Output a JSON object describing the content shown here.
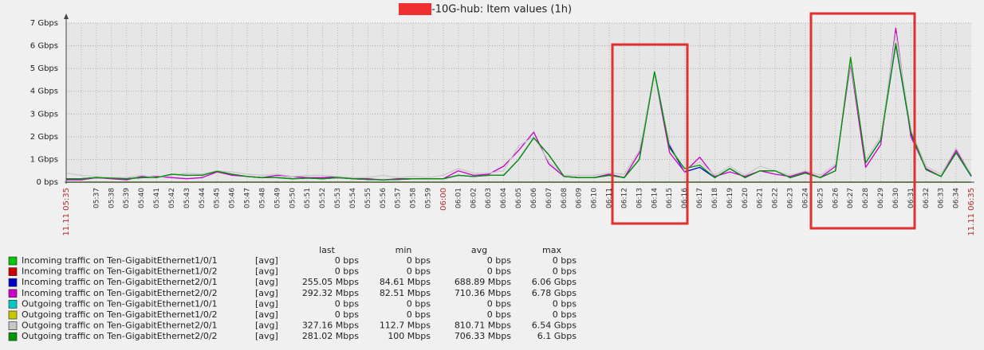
{
  "chart_data": {
    "type": "line",
    "title": "-10G-hub: Item values (1h)",
    "categories": [
      "11.11 05:35",
      null,
      "05:37",
      "05:38",
      "05:39",
      "05:40",
      "05:41",
      "05:42",
      "05:43",
      "05:44",
      "05:45",
      "05:46",
      "05:47",
      "05:48",
      "05:49",
      "05:50",
      "05:51",
      "05:52",
      "05:53",
      "05:54",
      "05:55",
      "05:56",
      "05:57",
      "05:58",
      "05:59",
      "06:00",
      "06:01",
      "06:02",
      "06:03",
      "06:04",
      "06:05",
      "06:06",
      "06:07",
      "06:08",
      "06:09",
      "06:10",
      "06:11",
      "06:12",
      "06:13",
      "06:14",
      "06:15",
      "06:16",
      "06:17",
      "06:18",
      "06:19",
      "06:20",
      "06:21",
      "06:22",
      "06:23",
      "06:24",
      "06:25",
      "06:26",
      "06:27",
      "06:28",
      "06:29",
      "06:30",
      "06:31",
      "06:32",
      "06:33",
      "06:34",
      "11.11 06:35"
    ],
    "x_highlight": [
      0,
      25,
      60
    ],
    "x_highlight_color": "#b03030",
    "ylim": [
      0,
      7
    ],
    "yticks": [
      {
        "value": 0,
        "label": "0 bps"
      },
      {
        "value": 1,
        "label": "1 Gbps"
      },
      {
        "value": 2,
        "label": "2 Gbps"
      },
      {
        "value": 3,
        "label": "3 Gbps"
      },
      {
        "value": 4,
        "label": "4 Gbps"
      },
      {
        "value": 5,
        "label": "5 Gbps"
      },
      {
        "value": 6,
        "label": "6 Gbps"
      },
      {
        "value": 7,
        "label": "7 Gbps"
      }
    ],
    "grid": true,
    "stat_headers": [
      "last",
      "min",
      "avg",
      "max"
    ],
    "series": [
      {
        "name": "Incoming traffic on Ten-GigabitEthernet1/0/1",
        "func": "[avg]",
        "color": "#00c800",
        "stats": [
          "0 bps",
          "0 bps",
          "0 bps",
          "0 bps"
        ],
        "values": [
          0,
          0,
          0,
          0,
          0,
          0,
          0,
          0,
          0,
          0,
          0,
          0,
          0,
          0,
          0,
          0,
          0,
          0,
          0,
          0,
          0,
          0,
          0,
          0,
          0,
          0,
          0,
          0,
          0,
          0,
          0,
          0,
          0,
          0,
          0,
          0,
          0,
          0,
          0,
          0,
          0,
          0,
          0,
          0,
          0,
          0,
          0,
          0,
          0,
          0,
          0,
          0,
          0,
          0,
          0,
          0,
          0,
          0,
          0,
          0,
          0
        ]
      },
      {
        "name": "Incoming traffic on Ten-GigabitEthernet1/0/2",
        "func": "[avg]",
        "color": "#c80000",
        "stats": [
          "0 bps",
          "0 bps",
          "0 bps",
          "0 bps"
        ],
        "values": [
          0,
          0,
          0,
          0,
          0,
          0,
          0,
          0,
          0,
          0,
          0,
          0,
          0,
          0,
          0,
          0,
          0,
          0,
          0,
          0,
          0,
          0,
          0,
          0,
          0,
          0,
          0,
          0,
          0,
          0,
          0,
          0,
          0,
          0,
          0,
          0,
          0,
          0,
          0,
          0,
          0,
          0,
          0,
          0,
          0,
          0,
          0,
          0,
          0,
          0,
          0,
          0,
          0,
          0,
          0,
          0,
          0,
          0,
          0,
          0,
          0
        ]
      },
      {
        "name": "Incoming traffic on Ten-GigabitEthernet2/0/1",
        "func": "[avg]",
        "color": "#0000c8",
        "stats": [
          "255.05 Mbps",
          "84.61 Mbps",
          "688.89 Mbps",
          "6.06 Gbps"
        ],
        "values": [
          0.15,
          0.15,
          0.2,
          0.18,
          0.15,
          0.2,
          0.2,
          0.35,
          0.3,
          0.3,
          0.48,
          0.35,
          0.25,
          0.2,
          0.2,
          0.15,
          0.18,
          0.15,
          0.2,
          0.15,
          0.12,
          0.1,
          0.12,
          0.15,
          0.15,
          0.15,
          0.3,
          0.25,
          0.3,
          0.3,
          1.0,
          1.95,
          1.2,
          0.25,
          0.2,
          0.2,
          0.3,
          0.2,
          1.0,
          4.85,
          1.6,
          0.45,
          0.65,
          0.2,
          0.6,
          0.2,
          0.5,
          0.5,
          0.2,
          0.4,
          0.2,
          0.5,
          5.45,
          0.85,
          1.85,
          6.06,
          2.15,
          0.55,
          0.25,
          1.3,
          0.255
        ]
      },
      {
        "name": "Incoming traffic on Ten-GigabitEthernet2/0/2",
        "func": "[avg]",
        "color": "#c800c8",
        "stats": [
          "292.32 Mbps",
          "82.51 Mbps",
          "710.36 Mbps",
          "6.78 Gbps"
        ],
        "values": [
          0.1,
          0.1,
          0.2,
          0.15,
          0.1,
          0.25,
          0.25,
          0.2,
          0.15,
          0.2,
          0.45,
          0.3,
          0.25,
          0.2,
          0.3,
          0.25,
          0.2,
          0.2,
          0.25,
          0.15,
          0.15,
          0.1,
          0.15,
          0.15,
          0.15,
          0.15,
          0.5,
          0.3,
          0.35,
          0.7,
          1.4,
          2.2,
          0.8,
          0.25,
          0.2,
          0.2,
          0.35,
          0.2,
          1.3,
          4.8,
          1.3,
          0.45,
          1.1,
          0.25,
          0.45,
          0.25,
          0.5,
          0.35,
          0.25,
          0.45,
          0.2,
          0.7,
          5.2,
          0.65,
          1.65,
          6.78,
          2.0,
          0.6,
          0.25,
          1.4,
          0.292
        ]
      },
      {
        "name": "Outgoing traffic on Ten-GigabitEthernet1/0/1",
        "func": "[avg]",
        "color": "#00c8c8",
        "stats": [
          "0 bps",
          "0 bps",
          "0 bps",
          "0 bps"
        ],
        "values": [
          0,
          0,
          0,
          0,
          0,
          0,
          0,
          0,
          0,
          0,
          0,
          0,
          0,
          0,
          0,
          0,
          0,
          0,
          0,
          0,
          0,
          0,
          0,
          0,
          0,
          0,
          0,
          0,
          0,
          0,
          0,
          0,
          0,
          0,
          0,
          0,
          0,
          0,
          0,
          0,
          0,
          0,
          0,
          0,
          0,
          0,
          0,
          0,
          0,
          0,
          0,
          0,
          0,
          0,
          0,
          0,
          0,
          0,
          0,
          0,
          0
        ]
      },
      {
        "name": "Outgoing traffic on Ten-GigabitEthernet1/0/2",
        "func": "[avg]",
        "color": "#c8c800",
        "stats": [
          "0 bps",
          "0 bps",
          "0 bps",
          "0 bps"
        ],
        "values": [
          0,
          0,
          0,
          0,
          0,
          0,
          0,
          0,
          0,
          0,
          0,
          0,
          0,
          0,
          0,
          0,
          0,
          0,
          0,
          0,
          0,
          0,
          0,
          0,
          0,
          0,
          0,
          0,
          0,
          0,
          0,
          0,
          0,
          0,
          0,
          0,
          0,
          0,
          0,
          0,
          0,
          0,
          0,
          0,
          0,
          0,
          0,
          0,
          0,
          0,
          0,
          0,
          0,
          0,
          0,
          0,
          0,
          0,
          0,
          0,
          0
        ]
      },
      {
        "name": "Outgoing traffic on Ten-GigabitEthernet2/0/1",
        "func": "[avg]",
        "color": "#c8c8c8",
        "stats": [
          "327.16 Mbps",
          "112.7 Mbps",
          "810.71 Mbps",
          "6.54 Gbps"
        ],
        "values": [
          0.4,
          0.3,
          0.25,
          0.2,
          0.2,
          0.3,
          0.2,
          0.3,
          0.4,
          0.35,
          0.5,
          0.45,
          0.35,
          0.3,
          0.35,
          0.25,
          0.3,
          0.3,
          0.25,
          0.2,
          0.2,
          0.3,
          0.2,
          0.25,
          0.2,
          0.3,
          0.6,
          0.4,
          0.4,
          0.5,
          1.6,
          2.0,
          0.9,
          0.3,
          0.3,
          0.3,
          0.4,
          0.35,
          1.4,
          4.7,
          1.7,
          0.5,
          0.9,
          0.3,
          0.7,
          0.3,
          0.7,
          0.5,
          0.3,
          0.5,
          0.3,
          0.8,
          5.3,
          1.0,
          2.0,
          6.54,
          2.3,
          0.7,
          0.35,
          1.5,
          0.327
        ]
      },
      {
        "name": "Outgoing traffic on Ten-GigabitEthernet2/0/2",
        "func": "[avg]",
        "color": "#009600",
        "stats": [
          "281.02 Mbps",
          "100 Mbps",
          "706.33 Mbps",
          "6.1 Gbps"
        ],
        "values": [
          0.15,
          0.15,
          0.2,
          0.18,
          0.15,
          0.2,
          0.2,
          0.35,
          0.3,
          0.3,
          0.48,
          0.35,
          0.25,
          0.2,
          0.2,
          0.15,
          0.18,
          0.15,
          0.2,
          0.15,
          0.12,
          0.1,
          0.12,
          0.15,
          0.15,
          0.15,
          0.3,
          0.25,
          0.3,
          0.3,
          1.0,
          1.95,
          1.2,
          0.25,
          0.2,
          0.2,
          0.3,
          0.2,
          1.0,
          4.85,
          1.5,
          0.6,
          0.75,
          0.2,
          0.6,
          0.2,
          0.5,
          0.5,
          0.2,
          0.4,
          0.2,
          0.5,
          5.5,
          0.85,
          1.85,
          6.1,
          2.2,
          0.55,
          0.25,
          1.3,
          0.281
        ]
      }
    ]
  }
}
